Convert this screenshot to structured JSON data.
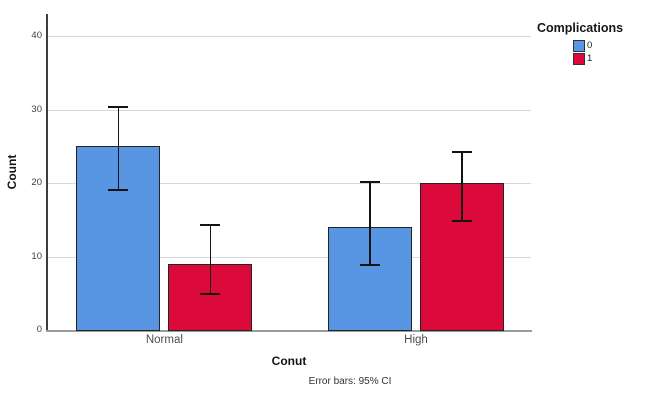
{
  "chart_data": {
    "type": "bar",
    "title": "",
    "legend_title": "Complications",
    "ylabel": "Count",
    "xlabel": "Conut",
    "caption": "Error bars: 95% CI",
    "categories": [
      "Normal",
      "High"
    ],
    "series": [
      {
        "name": "0",
        "color": "#5896E4",
        "values": [
          25,
          14
        ],
        "ci_low": [
          19.0,
          8.8
        ],
        "ci_high": [
          30.3,
          20.1
        ]
      },
      {
        "name": "1",
        "color": "#DB0A3A",
        "values": [
          9,
          20
        ],
        "ci_low": [
          4.9,
          14.8
        ],
        "ci_high": [
          14.3,
          24.2
        ]
      }
    ],
    "ylim": [
      0,
      43
    ],
    "yticks": [
      0,
      10,
      20,
      30,
      40
    ],
    "grid": "horizontal",
    "legend_position": "outside-top-right",
    "styles": {
      "background": "#ffffff",
      "gridline": "#d8d8d8",
      "y_axis_line": "#3d3d3d",
      "x_axis_line": "#9b9b9b",
      "bar_border": "#242424",
      "error_bar": "#141414"
    }
  }
}
